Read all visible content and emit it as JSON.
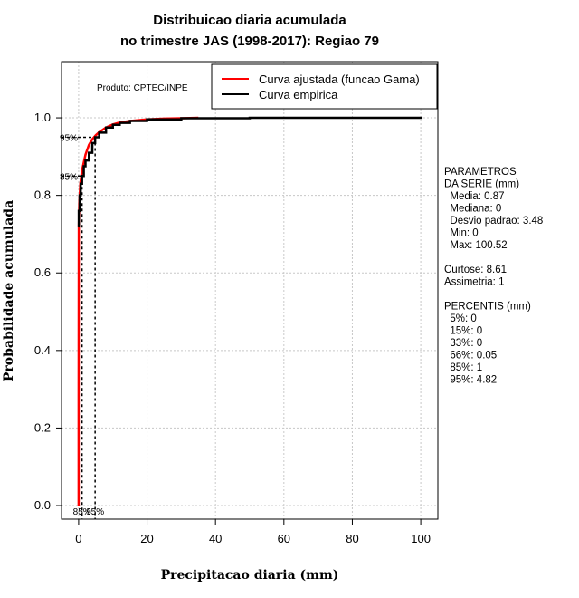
{
  "chart_data": {
    "type": "line",
    "title_line1": "Distribuicao diaria acumulada",
    "title_line2": "no trimestre JAS (1998-2017): Regiao 79",
    "xlabel": "Precipitacao diaria (mm)",
    "ylabel": "Probabilidade acumulada",
    "xlim": [
      -5,
      105
    ],
    "ylim": [
      -0.035,
      1.145
    ],
    "x_ticks": [
      0,
      20,
      40,
      60,
      80,
      100
    ],
    "y_ticks": [
      0.0,
      0.2,
      0.4,
      0.6,
      0.8,
      1.0
    ],
    "x_tick_labels": [
      "0",
      "20",
      "40",
      "60",
      "80",
      "100"
    ],
    "y_tick_labels": [
      "0.0",
      "0.2",
      "0.4",
      "0.6",
      "0.8",
      "1.0"
    ],
    "grid": true,
    "product_label": "Produto: CPTEC/INPE",
    "legend": {
      "placement": "top-right",
      "entries": [
        {
          "label": "Curva ajustada (funcao Gama)",
          "color": "#ff0000"
        },
        {
          "label": "Curva empirica",
          "color": "#000000"
        }
      ]
    },
    "series": [
      {
        "name": "Curva ajustada (funcao Gama)",
        "color": "#ff0000",
        "x": [
          0,
          0.05,
          0.2,
          0.5,
          1,
          2,
          3,
          4,
          5,
          6,
          8,
          10,
          12,
          15,
          20,
          25,
          30,
          35
        ],
        "y": [
          0.27,
          0.72,
          0.78,
          0.83,
          0.865,
          0.905,
          0.93,
          0.945,
          0.955,
          0.963,
          0.975,
          0.983,
          0.988,
          0.992,
          0.996,
          0.998,
          0.999,
          1.0
        ]
      },
      {
        "name": "Curva empirica",
        "color": "#000000",
        "x": [
          0,
          0.05,
          0.3,
          0.6,
          1,
          1.5,
          2,
          3,
          4,
          4.82,
          6,
          8,
          10,
          12,
          15,
          20,
          30,
          50,
          100.52
        ],
        "y": [
          0.72,
          0.76,
          0.8,
          0.83,
          0.85,
          0.875,
          0.89,
          0.91,
          0.935,
          0.95,
          0.962,
          0.975,
          0.982,
          0.987,
          0.992,
          0.996,
          0.999,
          1.0,
          1.0
        ]
      }
    ],
    "percentile_markers": [
      {
        "label": "85%",
        "x": 1,
        "y": 0.85
      },
      {
        "label": "95%",
        "x": 4.82,
        "y": 0.95
      }
    ]
  },
  "stats_panel": {
    "lines": [
      "PARAMETROS",
      "DA SERIE (mm)",
      "  Media: 0.87",
      "  Mediana: 0",
      "  Desvio padrao: 3.48",
      "  Min: 0",
      "  Max: 100.52",
      "",
      "Curtose: 8.61",
      "Assimetria: 1",
      "",
      "PERCENTIS (mm)",
      "  5%: 0",
      "  15%: 0",
      "  33%: 0",
      "  66%: 0.05",
      "  85%: 1",
      "  95%: 4.82"
    ]
  }
}
